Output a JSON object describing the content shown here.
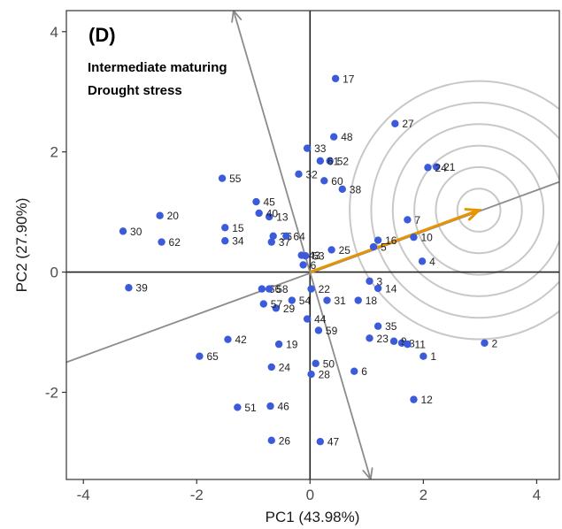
{
  "chart_data": {
    "type": "scatter",
    "panel_label": "(D)",
    "subtitle_lines": [
      "Intermediate maturing",
      "Drought stress"
    ],
    "xlabel": "PC1 (43.98%)",
    "ylabel": "PC2 (27.90%)",
    "xlim": [
      -4.3,
      4.4
    ],
    "ylim": [
      -3.45,
      4.35
    ],
    "xticks": [
      -4,
      -2,
      0,
      2,
      4
    ],
    "yticks": [
      -2,
      0,
      2,
      4
    ],
    "xtick_labels": [
      "-4",
      "-2",
      "0",
      "2",
      "4"
    ],
    "ytick_labels": [
      "-2",
      "0",
      "2",
      "4"
    ],
    "grid": false,
    "point_color": "#3b5bdb",
    "points": [
      {
        "label": "1",
        "x": 2.0,
        "y": -1.4
      },
      {
        "label": "2",
        "x": 3.08,
        "y": -1.18
      },
      {
        "label": "3",
        "x": 1.05,
        "y": -0.15
      },
      {
        "label": "4",
        "x": 1.98,
        "y": 0.18
      },
      {
        "label": "5",
        "x": 1.12,
        "y": 0.42
      },
      {
        "label": "6",
        "x": 0.78,
        "y": -1.65
      },
      {
        "label": "6",
        "x": -0.12,
        "y": 0.12
      },
      {
        "label": "7",
        "x": 1.72,
        "y": 0.87
      },
      {
        "label": "8",
        "x": 1.62,
        "y": -1.18
      },
      {
        "label": "9",
        "x": 1.48,
        "y": -1.15
      },
      {
        "label": "10",
        "x": 1.83,
        "y": 0.58
      },
      {
        "label": "11",
        "x": 1.72,
        "y": -1.2
      },
      {
        "label": "12",
        "x": 1.83,
        "y": -2.12
      },
      {
        "label": "13",
        "x": -0.72,
        "y": 0.92
      },
      {
        "label": "14",
        "x": 1.2,
        "y": -0.27
      },
      {
        "label": "15",
        "x": -1.5,
        "y": 0.74
      },
      {
        "label": "16",
        "x": 1.2,
        "y": 0.53
      },
      {
        "label": "17",
        "x": 0.45,
        "y": 3.22
      },
      {
        "label": "18",
        "x": 0.85,
        "y": -0.47
      },
      {
        "label": "19",
        "x": -0.55,
        "y": -1.2
      },
      {
        "label": "20",
        "x": -2.65,
        "y": 0.94
      },
      {
        "label": "21",
        "x": 2.23,
        "y": 1.75
      },
      {
        "label": "22",
        "x": 0.02,
        "y": -0.28
      },
      {
        "label": "23",
        "x": 1.05,
        "y": -1.1
      },
      {
        "label": "24",
        "x": 2.08,
        "y": 1.74
      },
      {
        "label": "24",
        "x": -0.68,
        "y": -1.58
      },
      {
        "label": "25",
        "x": 0.38,
        "y": 0.37
      },
      {
        "label": "26",
        "x": -0.68,
        "y": -2.8
      },
      {
        "label": "27",
        "x": 1.5,
        "y": 2.47
      },
      {
        "label": "28",
        "x": 0.02,
        "y": -1.7
      },
      {
        "label": "29",
        "x": -0.6,
        "y": -0.6
      },
      {
        "label": "30",
        "x": -3.3,
        "y": 0.68
      },
      {
        "label": "31",
        "x": 0.3,
        "y": -0.47
      },
      {
        "label": "32",
        "x": -0.2,
        "y": 1.63
      },
      {
        "label": "33",
        "x": -0.05,
        "y": 2.06
      },
      {
        "label": "34",
        "x": -1.5,
        "y": 0.52
      },
      {
        "label": "35",
        "x": 1.2,
        "y": -0.9
      },
      {
        "label": "36",
        "x": -0.65,
        "y": 0.6
      },
      {
        "label": "37",
        "x": -0.68,
        "y": 0.5
      },
      {
        "label": "38",
        "x": 0.57,
        "y": 1.38
      },
      {
        "label": "39",
        "x": -3.2,
        "y": -0.26
      },
      {
        "label": "40",
        "x": -0.9,
        "y": 0.98
      },
      {
        "label": "42",
        "x": -1.45,
        "y": -1.12
      },
      {
        "label": "43",
        "x": -0.15,
        "y": 0.28
      },
      {
        "label": "44",
        "x": -0.05,
        "y": -0.78
      },
      {
        "label": "45",
        "x": -0.95,
        "y": 1.17
      },
      {
        "label": "46",
        "x": -0.7,
        "y": -2.23
      },
      {
        "label": "47",
        "x": 0.18,
        "y": -2.82
      },
      {
        "label": "48",
        "x": 0.42,
        "y": 2.25
      },
      {
        "label": "50",
        "x": 0.1,
        "y": -1.52
      },
      {
        "label": "51",
        "x": -1.28,
        "y": -2.25
      },
      {
        "label": "52",
        "x": 0.35,
        "y": 1.85
      },
      {
        "label": "53",
        "x": -0.08,
        "y": 0.27
      },
      {
        "label": "54",
        "x": -0.32,
        "y": -0.47
      },
      {
        "label": "55",
        "x": -1.55,
        "y": 1.56
      },
      {
        "label": "56",
        "x": -0.85,
        "y": -0.28
      },
      {
        "label": "57",
        "x": -0.82,
        "y": -0.53
      },
      {
        "label": "58",
        "x": -0.72,
        "y": -0.28
      },
      {
        "label": "59",
        "x": 0.15,
        "y": -0.97
      },
      {
        "label": "60",
        "x": 0.25,
        "y": 1.52
      },
      {
        "label": "61",
        "x": 0.18,
        "y": 1.85
      },
      {
        "label": "62",
        "x": -2.62,
        "y": 0.5
      },
      {
        "label": "64",
        "x": -0.42,
        "y": 0.6
      },
      {
        "label": "65",
        "x": -1.95,
        "y": -1.4
      }
    ],
    "vectors": [
      {
        "from": [
          -4.3,
          -1.5
        ],
        "to": [
          4.4,
          1.5
        ],
        "color": "#8c8c8c",
        "arrow": false
      },
      {
        "from": [
          0,
          0
        ],
        "to": [
          -1.35,
          4.35
        ],
        "color": "#8c8c8c",
        "arrow": true
      },
      {
        "from": [
          0,
          0
        ],
        "to": [
          1.07,
          -3.45
        ],
        "color": "#8c8c8c",
        "arrow": true
      },
      {
        "from": [
          0,
          0
        ],
        "to": [
          2.98,
          1.03
        ],
        "color": "#e69500",
        "arrow": true
      }
    ],
    "circles": {
      "center": [
        2.98,
        1.03
      ],
      "radii": [
        0.38,
        0.76,
        1.14,
        1.52,
        1.9,
        2.28
      ],
      "color": "#c8c8c8"
    }
  }
}
